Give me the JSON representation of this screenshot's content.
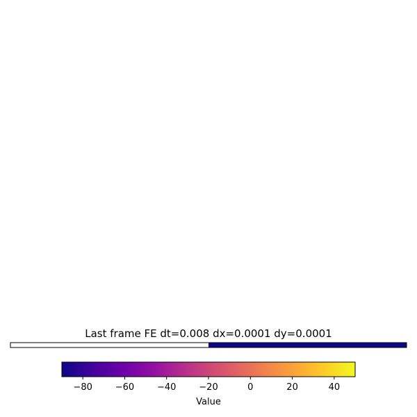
{
  "chart_data": {
    "type": "heatmap",
    "title": "Last frame FE dt=0.008 dx=0.0001 dy=0.0001",
    "colormap": "plasma",
    "clim": [
      -90,
      50
    ],
    "cells": [
      {
        "value": null
      },
      {
        "value": -90
      }
    ],
    "colorbar": {
      "label": "Value",
      "orientation": "horizontal",
      "ticks": [
        -80,
        -60,
        -40,
        -20,
        0,
        20,
        40
      ],
      "tick_labels": [
        "−80",
        "−60",
        "−40",
        "−20",
        "0",
        "20",
        "40"
      ],
      "stops": [
        "#0d0887",
        "#41049d",
        "#6a00a8",
        "#8f0da4",
        "#b12a90",
        "#cc4778",
        "#e16462",
        "#f2844b",
        "#fca636",
        "#fcce25",
        "#f0f921"
      ]
    }
  }
}
